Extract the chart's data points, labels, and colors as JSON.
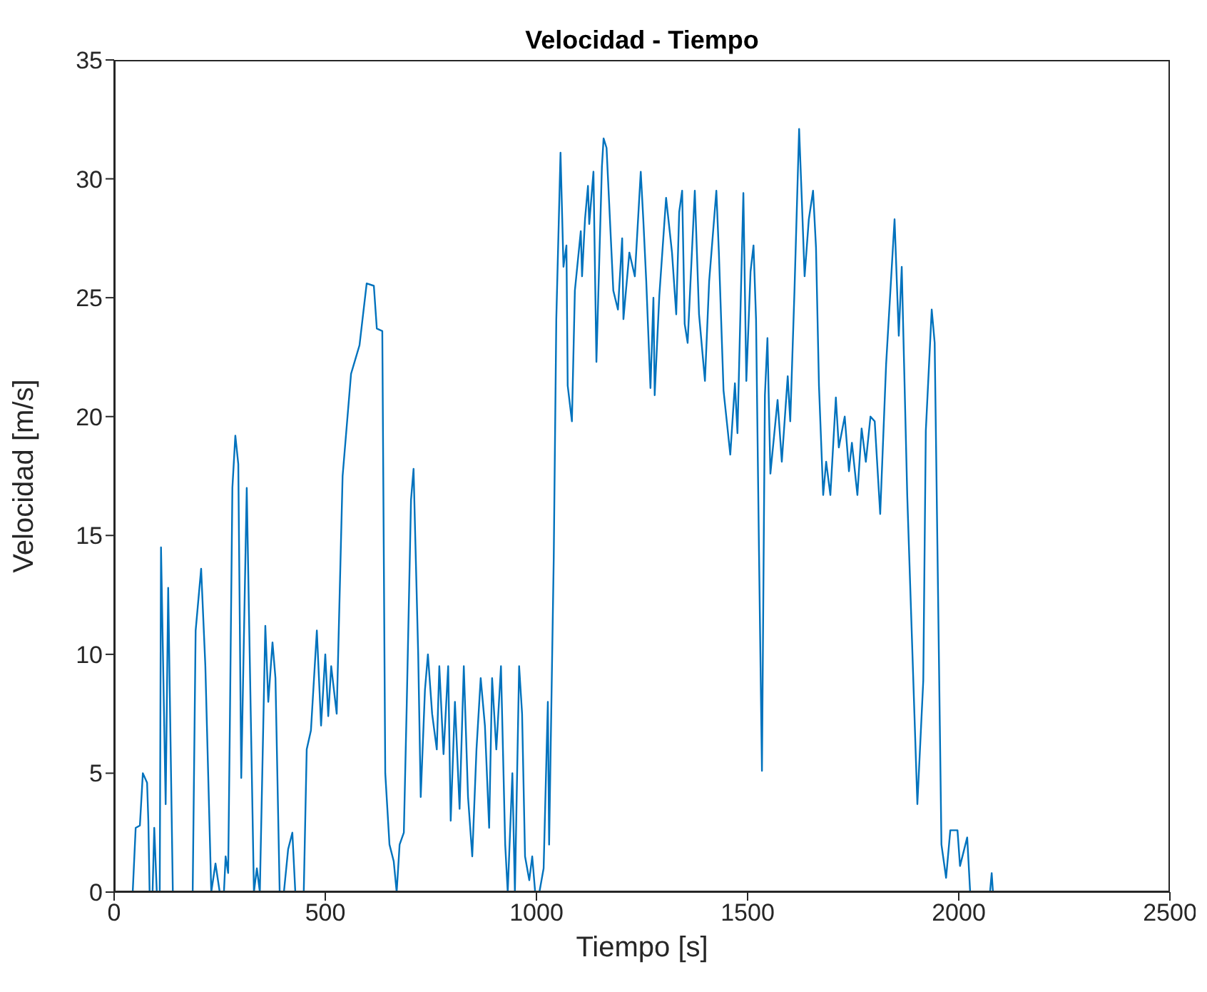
{
  "chart_data": {
    "type": "line",
    "title": "Velocidad - Tiempo",
    "xlabel": "Tiempo [s]",
    "ylabel": "Velocidad [m/s]",
    "xlim": [
      0,
      2500
    ],
    "xticks": [
      0,
      500,
      1000,
      1500,
      2000,
      2500
    ],
    "ylim": [
      0,
      35
    ],
    "yticks": [
      0,
      5,
      10,
      15,
      20,
      25,
      30,
      35
    ],
    "grid": false,
    "legend": false,
    "marker": "none",
    "line_style": "solid",
    "series": [
      {
        "color": "#0072bd",
        "x": [
          0,
          44,
          51,
          61,
          68,
          78,
          81,
          84,
          91,
          95,
          101,
          108,
          111,
          122,
          128,
          139,
          186,
          193,
          206,
          216,
          230,
          240,
          250,
          260,
          264,
          270,
          274,
          280,
          287,
          294,
          301,
          314,
          331,
          338,
          345,
          358,
          365,
          375,
          382,
          392,
          402,
          412,
          422,
          429,
          449,
          456,
          466,
          480,
          490,
          500,
          507,
          514,
          527,
          541,
          561,
          581,
          598,
          615,
          622,
          635,
          642,
          652,
          662,
          669,
          676,
          686,
          693,
          703,
          709,
          720,
          726,
          736,
          743,
          753,
          764,
          770,
          780,
          791,
          797,
          807,
          818,
          828,
          838,
          848,
          858,
          868,
          878,
          888,
          895,
          905,
          916,
          926,
          932,
          943,
          949,
          959,
          966,
          973,
          983,
          990,
          997,
          1007,
          1017,
          1027,
          1030,
          1041,
          1047,
          1057,
          1064,
          1071,
          1074,
          1084,
          1091,
          1105,
          1108,
          1115,
          1122,
          1125,
          1135,
          1142,
          1155,
          1159,
          1166,
          1182,
          1193,
          1203,
          1206,
          1220,
          1233,
          1247,
          1253,
          1260,
          1270,
          1277,
          1280,
          1291,
          1307,
          1321,
          1331,
          1338,
          1345,
          1351,
          1358,
          1375,
          1385,
          1399,
          1409,
          1426,
          1432,
          1443,
          1459,
          1470,
          1476,
          1490,
          1497,
          1507,
          1514,
          1520,
          1527,
          1534,
          1541,
          1547,
          1554,
          1571,
          1581,
          1595,
          1601,
          1611,
          1622,
          1628,
          1635,
          1645,
          1655,
          1662,
          1669,
          1679,
          1686,
          1696,
          1709,
          1716,
          1730,
          1740,
          1747,
          1760,
          1770,
          1780,
          1791,
          1801,
          1814,
          1828,
          1848,
          1858,
          1865,
          1878,
          1895,
          1902,
          1916,
          1922,
          1936,
          1943,
          1959,
          1970,
          1980,
          1997,
          2003,
          2020,
          2027,
          2074,
          2078,
          2081,
          2101
        ],
        "values": [
          0,
          0,
          2.7,
          2.8,
          5,
          4.6,
          3,
          0,
          0,
          2.7,
          0,
          0,
          14.5,
          3.7,
          12.8,
          0,
          0,
          11,
          13.6,
          9.5,
          0,
          1.2,
          0,
          0,
          1.5,
          0.8,
          7,
          17,
          19.2,
          18,
          4.8,
          17,
          0,
          1,
          0,
          11.2,
          8,
          10.5,
          9,
          0,
          0,
          1.8,
          2.5,
          0,
          0,
          6,
          6.8,
          11,
          7,
          10,
          7.4,
          9.5,
          7.5,
          17.5,
          21.8,
          23,
          25.6,
          25.5,
          23.7,
          23.6,
          5,
          2,
          1.3,
          0,
          2,
          2.5,
          8,
          16.5,
          17.8,
          10,
          4,
          8.5,
          10,
          7.5,
          6,
          9.5,
          5.8,
          9.5,
          3,
          8,
          3.5,
          9.5,
          4,
          1.5,
          6,
          9,
          7,
          2.7,
          9,
          6,
          9.5,
          2,
          0,
          5,
          0,
          9.5,
          7.5,
          1.5,
          0.5,
          1.5,
          0,
          0,
          1,
          8,
          2,
          14.1,
          24.1,
          31.1,
          26.3,
          27.2,
          21.3,
          19.8,
          25.3,
          27.8,
          25.9,
          28.3,
          29.7,
          28.1,
          30.3,
          22.3,
          30.5,
          31.7,
          31.3,
          25.3,
          24.5,
          27.5,
          24.1,
          26.9,
          25.9,
          30.3,
          28.3,
          25.7,
          21.2,
          25,
          20.9,
          25.1,
          29.2,
          26.9,
          24.3,
          28.6,
          29.5,
          23.9,
          23.1,
          29.5,
          24.3,
          21.5,
          25.7,
          29.5,
          26.9,
          21.1,
          18.4,
          21.4,
          19.3,
          29.4,
          21.5,
          26.1,
          27.2,
          24.1,
          14.3,
          5.1,
          20.9,
          23.3,
          17.6,
          20.7,
          18.1,
          21.7,
          19.8,
          25.3,
          32.1,
          29.3,
          25.9,
          28.3,
          29.5,
          27.1,
          21.3,
          16.7,
          18.1,
          16.7,
          20.8,
          18.7,
          20,
          17.7,
          18.9,
          16.7,
          19.5,
          18.1,
          20,
          19.8,
          15.9,
          22.2,
          28.3,
          23.4,
          26.3,
          16.7,
          7.5,
          3.7,
          8.9,
          19.4,
          24.5,
          23.1,
          2,
          0.6,
          2.6,
          2.6,
          1.1,
          2.3,
          0,
          0,
          0.8,
          0,
          0
        ]
      }
    ]
  }
}
